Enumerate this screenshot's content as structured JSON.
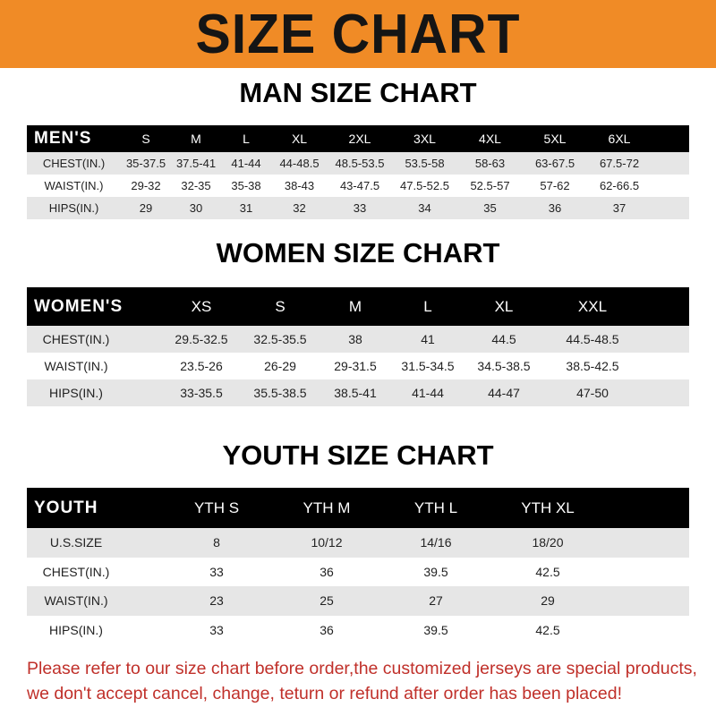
{
  "banner": {
    "title": "SIZE CHART",
    "color": "#f08b26"
  },
  "men": {
    "title": "MAN SIZE CHART",
    "header": [
      "MEN'S",
      "S",
      "M",
      "L",
      "XL",
      "2XL",
      "3XL",
      "4XL",
      "5XL",
      "6XL"
    ],
    "rows": [
      [
        "CHEST(IN.)",
        "35-37.5",
        "37.5-41",
        "41-44",
        "44-48.5",
        "48.5-53.5",
        "53.5-58",
        "58-63",
        "63-67.5",
        "67.5-72"
      ],
      [
        "WAIST(IN.)",
        "29-32",
        "32-35",
        "35-38",
        "38-43",
        "43-47.5",
        "47.5-52.5",
        "52.5-57",
        "57-62",
        "62-66.5"
      ],
      [
        "HIPS(IN.)",
        "29",
        "30",
        "31",
        "32",
        "33",
        "34",
        "35",
        "36",
        "37"
      ]
    ]
  },
  "women": {
    "title": "WOMEN SIZE CHART",
    "header": [
      "WOMEN'S",
      "XS",
      "S",
      "M",
      "L",
      "XL",
      "XXL"
    ],
    "rows": [
      [
        "CHEST(IN.)",
        "29.5-32.5",
        "32.5-35.5",
        "38",
        "41",
        "44.5",
        "44.5-48.5"
      ],
      [
        "WAIST(IN.)",
        "23.5-26",
        "26-29",
        "29-31.5",
        "31.5-34.5",
        "34.5-38.5",
        "38.5-42.5"
      ],
      [
        "HIPS(IN.)",
        "33-35.5",
        "35.5-38.5",
        "38.5-41",
        "41-44",
        "44-47",
        "47-50"
      ]
    ]
  },
  "youth": {
    "title": "YOUTH SIZE CHART",
    "header": [
      "YOUTH",
      "YTH S",
      "YTH M",
      "YTH L",
      "YTH XL"
    ],
    "rows": [
      [
        "U.S.SIZE",
        "8",
        "10/12",
        "14/16",
        "18/20"
      ],
      [
        "CHEST(IN.)",
        "33",
        "36",
        "39.5",
        "42.5"
      ],
      [
        "WAIST(IN.)",
        "23",
        "25",
        "27",
        "29"
      ],
      [
        "HIPS(IN.)",
        "33",
        "36",
        "39.5",
        "42.5"
      ]
    ]
  },
  "notice": {
    "line1": "Please refer to our size chart before order,the customized jerseys are special products,",
    "line2": "we don't accept cancel, change, teturn or refund after order has been placed!",
    "color": "#c0302a"
  }
}
